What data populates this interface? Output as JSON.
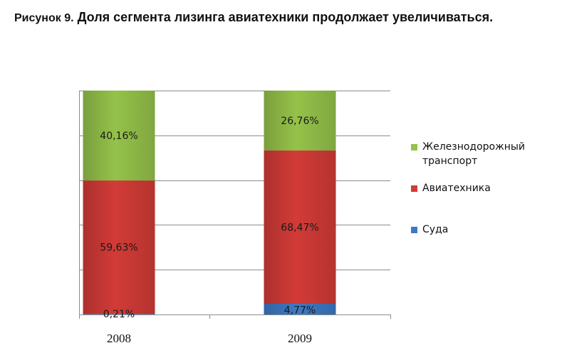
{
  "title": {
    "figure_label": "Рисунок 9.",
    "text": "Доля сегмента лизинга авиатехники продолжает увеличиваться."
  },
  "chart_data": {
    "type": "bar",
    "stacked": true,
    "categories": [
      "2008",
      "2009"
    ],
    "series": [
      {
        "name": "Суда",
        "values": [
          0.21,
          4.77
        ],
        "labels": [
          "0,21%",
          "4,77%"
        ],
        "color": "#3d79c4"
      },
      {
        "name": "Авиатехника",
        "values": [
          59.63,
          68.47
        ],
        "labels": [
          "59,63%",
          "68,47%"
        ],
        "color": "#d23b37"
      },
      {
        "name": "Железнодорожный транспорт",
        "values": [
          40.16,
          26.76
        ],
        "labels": [
          "40,16%",
          "26,76%"
        ],
        "color": "#95c24a"
      }
    ],
    "ylim": [
      0,
      100
    ],
    "gridlines": 5,
    "grid": true,
    "legend": "right"
  },
  "legend_lines": [
    [
      "Железнодорожный",
      "транспорт"
    ],
    [
      "Авиатехника"
    ],
    [
      "Суда"
    ]
  ]
}
